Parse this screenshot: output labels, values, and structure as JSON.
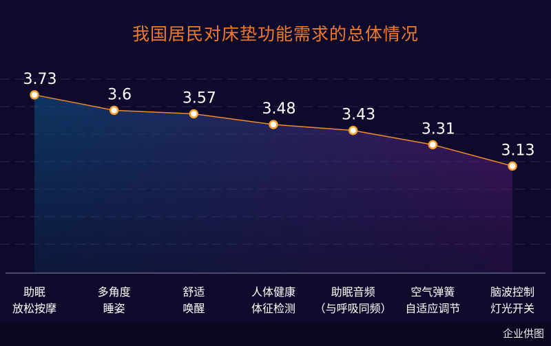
{
  "chart_data": {
    "type": "area",
    "title": "我国居民对床垫功能需求的总体情况",
    "categories": [
      [
        "助眠",
        "放松按摩"
      ],
      [
        "多角度",
        "睡姿"
      ],
      [
        "舒适",
        "唤醒"
      ],
      [
        "人体健康",
        "体征检测"
      ],
      [
        "助眠音频",
        "（与呼吸同频）"
      ],
      [
        "空气弹簧",
        "自适应调节"
      ],
      [
        "脑波控制",
        "灯光开关"
      ]
    ],
    "values": [
      3.73,
      3.6,
      3.57,
      3.48,
      3.43,
      3.31,
      3.13
    ],
    "data_labels": [
      "3.73",
      "3.6",
      "3.57",
      "3.48",
      "3.43",
      "3.31",
      "3.13"
    ],
    "ylim": [
      2.5,
      3.95
    ],
    "grid": true,
    "colors": {
      "line": "#f28a2c",
      "marker_fill": "#ffffff",
      "marker_stroke": "#f5a12a",
      "area_left": "#0e4a7a",
      "area_right": "#5a1d78",
      "grid": "#2a2752",
      "title": "#f07a2c",
      "text": "#ffffff"
    }
  },
  "watermark": "企业供图"
}
